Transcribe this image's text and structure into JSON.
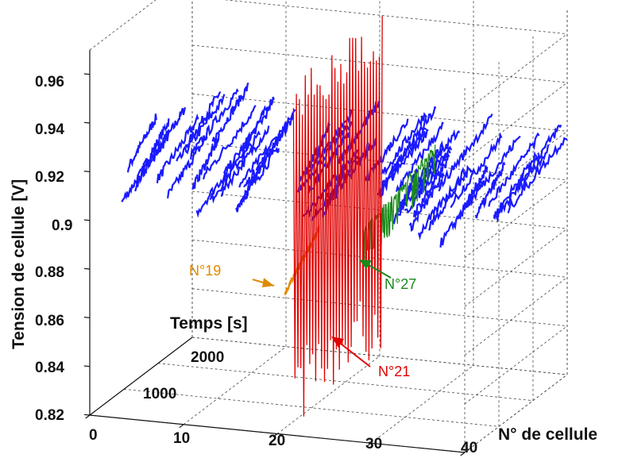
{
  "chart_data": {
    "type": "line",
    "projection": "3d",
    "title": "",
    "zlabel": "Tension de cellule [V]",
    "xlabel": "N° de cellule",
    "ylabel": "Temps [s]",
    "x_ticks": [
      "0",
      "10",
      "20",
      "30",
      "40"
    ],
    "y_ticks": [
      "1000",
      "2000"
    ],
    "z_ticks": [
      "0.82",
      "0.84",
      "0.86",
      "0.88",
      "0.9",
      "0.92",
      "0.94",
      "0.96"
    ],
    "xlim": [
      0,
      40
    ],
    "ylim": [
      0,
      3000
    ],
    "zlim": [
      0.82,
      0.97
    ],
    "grid": true,
    "colors": {
      "blue": "#1a1aff",
      "red": "#e00000",
      "orange": "#e08a00",
      "green": "#1a8a1a"
    },
    "series": [
      {
        "label": "N°19",
        "cell": 19,
        "color": "#e08a00",
        "time_range": [
          500,
          1500
        ],
        "voltage_range": [
          0.872,
          0.888
        ]
      },
      {
        "label": "N°21",
        "cell": 21,
        "color": "#e00000",
        "time_range": [
          0,
          3000
        ],
        "voltage_range": [
          0.82,
          0.965
        ]
      },
      {
        "label": "N°27",
        "cell": 27,
        "color": "#1a8a1a",
        "time_range": [
          0,
          3000
        ],
        "voltage_range": [
          0.888,
          0.915
        ]
      }
    ],
    "other_cells": {
      "color": "#1a1aff",
      "voltage_range": [
        0.9,
        0.93
      ],
      "time_range": [
        0,
        3000
      ]
    }
  }
}
